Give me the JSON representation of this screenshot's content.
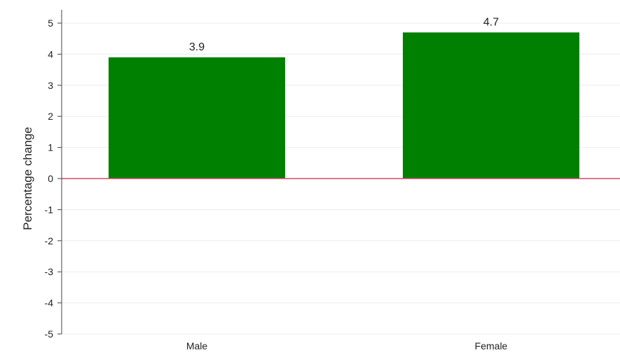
{
  "chart_data": {
    "type": "bar",
    "title": "",
    "xlabel": "",
    "ylabel": "Percentage change",
    "categories": [
      "Male",
      "Female"
    ],
    "values": [
      3.9,
      4.7
    ],
    "data_labels": [
      "3.9",
      "4.7"
    ],
    "ylim": [
      -5,
      5
    ],
    "yticks": [
      5,
      4,
      3,
      2,
      1,
      0,
      -1,
      -2,
      -3,
      -4,
      -5
    ],
    "ytick_labels": [
      "5",
      "4",
      "3",
      "2",
      "1",
      "0",
      "-1",
      "-2",
      "-3",
      "-4",
      "-5"
    ],
    "grid": true,
    "zero_line": true,
    "legend": "none",
    "colors": {
      "bar": "#008000",
      "zero_line": "#d4486a",
      "grid": "#ececec",
      "axis": "#444444"
    }
  }
}
